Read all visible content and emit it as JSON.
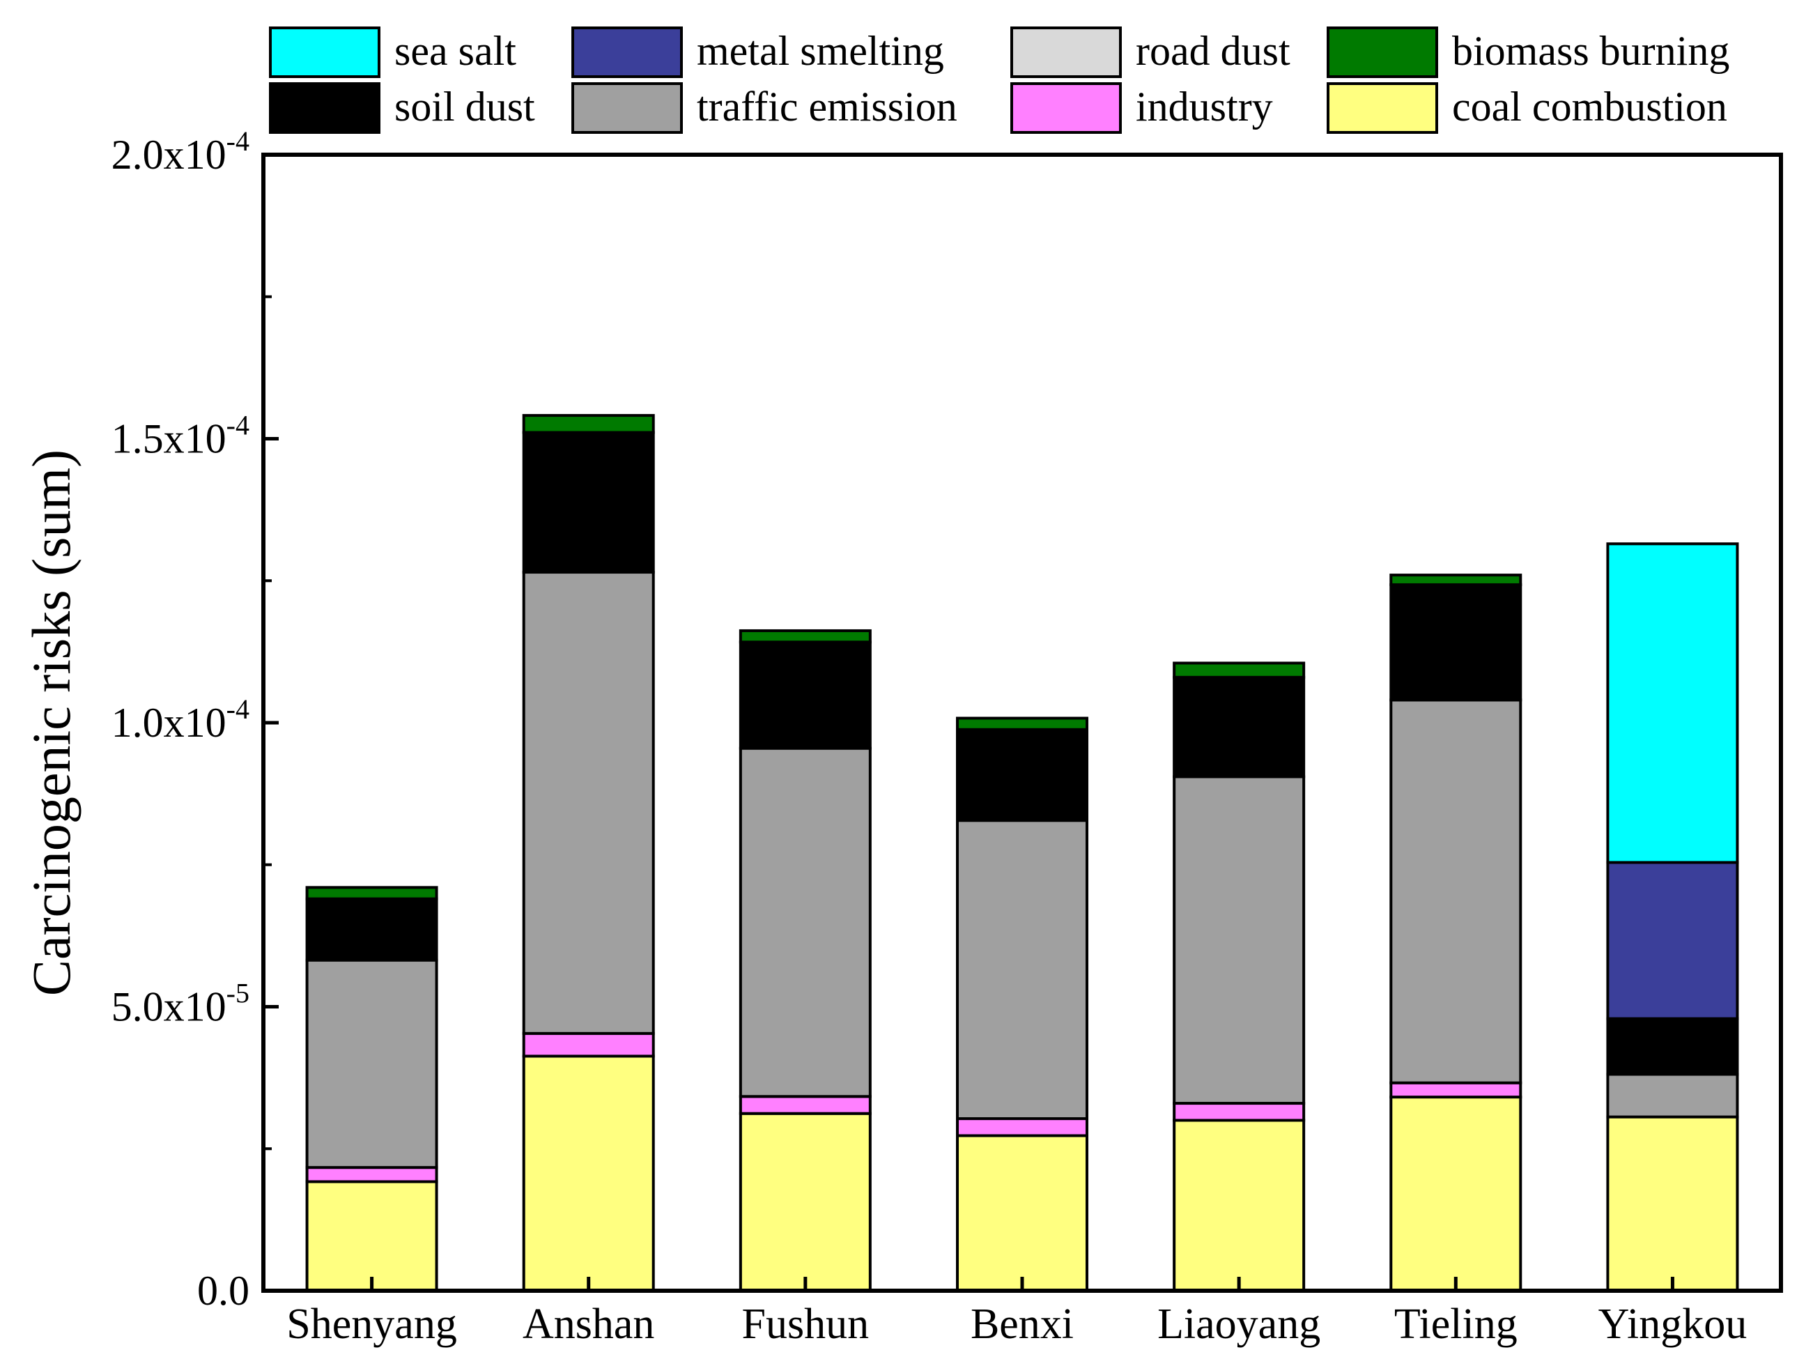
{
  "chart_data": {
    "type": "bar",
    "stacked": true,
    "title": "",
    "xlabel": "",
    "ylabel": "Carcinogenic risks (sum)",
    "ylim": [
      0,
      0.0002
    ],
    "grid": false,
    "legend_position": "top",
    "categories": [
      "Shenyang",
      "Anshan",
      "Fushun",
      "Benxi",
      "Liaoyang",
      "Tieling",
      "Yingkou"
    ],
    "y_ticks": [
      {
        "value": 0,
        "mantissa": "0.0",
        "exponent": ""
      },
      {
        "value": 5e-05,
        "mantissa": "5.0x10",
        "exponent": "-5"
      },
      {
        "value": 0.0001,
        "mantissa": "1.0x10",
        "exponent": "-4"
      },
      {
        "value": 0.00015,
        "mantissa": "1.5x10",
        "exponent": "-4"
      },
      {
        "value": 0.0002,
        "mantissa": "2.0x10",
        "exponent": "-4"
      }
    ],
    "series": [
      {
        "name": "coal combustion",
        "color": "#FFFF80",
        "values": [
          1.92e-05,
          4.13e-05,
          3.12e-05,
          2.73e-05,
          3e-05,
          3.41e-05,
          3.06e-05
        ]
      },
      {
        "name": "industry",
        "color": "#FF80FF",
        "values": [
          2.5e-06,
          4e-06,
          3e-06,
          3e-06,
          3e-06,
          2.5e-06,
          0
        ]
      },
      {
        "name": "traffic emission",
        "color": "#A0A0A0",
        "values": [
          3.65e-05,
          8.12e-05,
          6.13e-05,
          5.25e-05,
          5.75e-05,
          6.74e-05,
          7.5e-06
        ]
      },
      {
        "name": "road dust",
        "color": "#D9D9D9",
        "values": [
          0,
          0,
          0,
          0,
          0,
          0,
          0
        ]
      },
      {
        "name": "soil dust",
        "color": "#000000",
        "values": [
          1.08e-05,
          2.46e-05,
          1.87e-05,
          1.6e-05,
          1.75e-05,
          2.03e-05,
          9.8e-06
        ]
      },
      {
        "name": "metal smelting",
        "color": "#3B3F9A",
        "values": [
          0,
          0,
          0,
          0,
          0,
          0,
          2.75e-05
        ]
      },
      {
        "name": "biomass burning",
        "color": "#007A00",
        "values": [
          2e-06,
          3e-06,
          2e-06,
          2e-06,
          2.5e-06,
          1.7e-06,
          0
        ]
      },
      {
        "name": "sea salt",
        "color": "#00FFFF",
        "values": [
          0,
          0,
          0,
          0,
          0,
          0,
          5.61e-05
        ]
      }
    ],
    "legend_order": [
      "sea salt",
      "metal smelting",
      "road dust",
      "biomass burning",
      "soil dust",
      "traffic emission",
      "industry",
      "coal combustion"
    ]
  }
}
